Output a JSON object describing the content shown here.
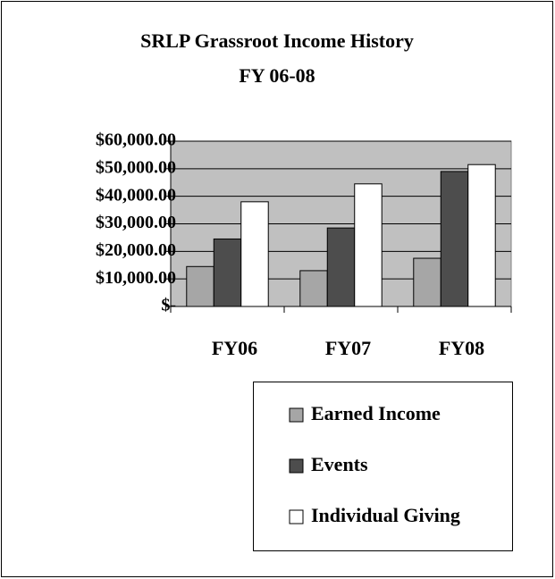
{
  "chart_data": {
    "type": "bar",
    "title": [
      "SRLP Grassroot Income History",
      "FY 06-08"
    ],
    "categories": [
      "FY06",
      "FY07",
      "FY08"
    ],
    "series": [
      {
        "name": "Earned Income",
        "color": "#a6a6a6",
        "values": [
          14500,
          13000,
          17500
        ]
      },
      {
        "name": "Events",
        "color": "#4d4d4d",
        "values": [
          24500,
          28500,
          49000
        ]
      },
      {
        "name": "Individual Giving",
        "color": "#ffffff",
        "values": [
          38000,
          44500,
          51500
        ]
      }
    ],
    "ylim": [
      0,
      60000
    ],
    "yticks": [
      {
        "value": 0,
        "label": "$-"
      },
      {
        "value": 10000,
        "label": "$10,000.00"
      },
      {
        "value": 20000,
        "label": "$20,000.00"
      },
      {
        "value": 30000,
        "label": "$30,000.00"
      },
      {
        "value": 40000,
        "label": "$40,000.00"
      },
      {
        "value": 50000,
        "label": "$50,000.00"
      },
      {
        "value": 60000,
        "label": "$60,000.00"
      }
    ],
    "grid": true,
    "plot_background": "#c0c0c0",
    "legend": "bottom-right"
  }
}
